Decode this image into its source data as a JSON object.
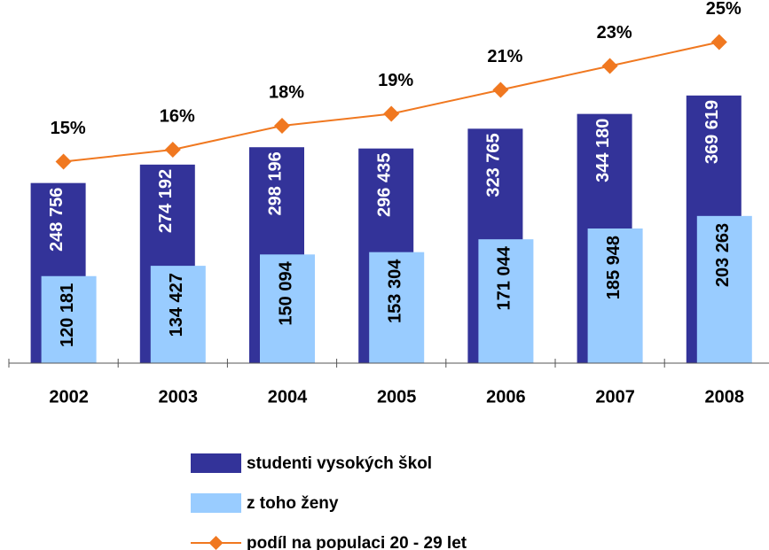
{
  "chart_data": {
    "type": "bar",
    "categories": [
      "2002",
      "2003",
      "2004",
      "2005",
      "2006",
      "2007",
      "2008"
    ],
    "ylim": [
      0,
      400000
    ],
    "y2lim": [
      0,
      30
    ],
    "series": [
      {
        "name": "studenti vysokých škol",
        "type": "bar",
        "color": "#333399",
        "values": [
          248756,
          274192,
          298196,
          296435,
          323765,
          344180,
          369619
        ],
        "value_labels": [
          "248 756",
          "274 192",
          "298 196",
          "296 435",
          "323 765",
          "344 180",
          "369 619"
        ]
      },
      {
        "name": "z toho ženy",
        "type": "bar",
        "color": "#99ccff",
        "values": [
          120181,
          134427,
          150094,
          153304,
          171044,
          185948,
          203263
        ],
        "value_labels": [
          "120 181",
          "134 427",
          "150 094",
          "153 304",
          "171 044",
          "185 948",
          "203 263"
        ]
      },
      {
        "name": "podíl na populaci 20 - 29 let",
        "type": "line",
        "axis": "y2",
        "color": "#f07820",
        "values": [
          15,
          16,
          18,
          19,
          21,
          23,
          25
        ],
        "value_labels": [
          "15%",
          "16%",
          "18%",
          "19%",
          "21%",
          "23%",
          "25%"
        ]
      }
    ]
  }
}
